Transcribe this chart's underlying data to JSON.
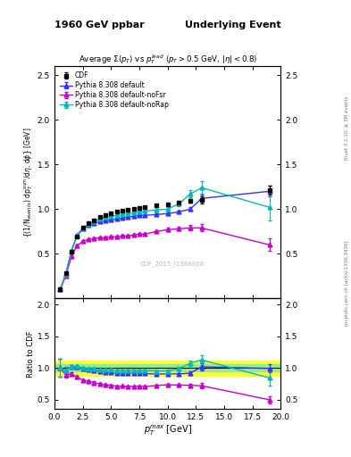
{
  "title_left": "1960 GeV ppbar",
  "title_right": "Underlying Event",
  "plot_title": "Average $\\Sigma(p_T)$ vs $p_T^{lead}$ ($p_T > 0.5$ GeV, $|\\eta| < 0.8$)",
  "watermark": "CDF_2015_I1388868",
  "rivet_label": "Rivet 3.1.10, ≥ 3M events",
  "mcplots_label": "mcplots.cern.ch [arXiv:1306.3436]",
  "ylabel_main": "{(1/N$_{events}$) dp$_T^{sum}$/d$\\eta$, d$\\phi$} [GeV]",
  "ylabel_ratio": "Ratio to CDF",
  "xlabel": "${p_T^{max}}$ [GeV]",
  "xlim": [
    0,
    20
  ],
  "ylim_main": [
    0,
    2.6
  ],
  "ylim_ratio": [
    0.35,
    2.1
  ],
  "yticks_main": [
    0.5,
    1.0,
    1.5,
    2.0,
    2.5
  ],
  "yticks_ratio": [
    0.5,
    1.0,
    1.5,
    2.0
  ],
  "cdf_x": [
    0.5,
    1.0,
    1.5,
    2.0,
    2.5,
    3.0,
    3.5,
    4.0,
    4.5,
    5.0,
    5.5,
    6.0,
    6.5,
    7.0,
    7.5,
    8.0,
    9.0,
    10.0,
    11.0,
    12.0,
    13.0,
    19.0
  ],
  "cdf_y": [
    0.1,
    0.28,
    0.52,
    0.69,
    0.79,
    0.84,
    0.87,
    0.91,
    0.93,
    0.95,
    0.97,
    0.98,
    0.99,
    1.0,
    1.01,
    1.02,
    1.04,
    1.05,
    1.07,
    1.09,
    1.1,
    1.21
  ],
  "cdf_yerr": [
    0.01,
    0.01,
    0.01,
    0.01,
    0.01,
    0.01,
    0.01,
    0.01,
    0.01,
    0.01,
    0.01,
    0.01,
    0.01,
    0.01,
    0.01,
    0.01,
    0.01,
    0.01,
    0.01,
    0.02,
    0.04,
    0.05
  ],
  "pythia_default_x": [
    0.5,
    1.0,
    1.5,
    2.0,
    2.5,
    3.0,
    3.5,
    4.0,
    4.5,
    5.0,
    5.5,
    6.0,
    6.5,
    7.0,
    7.5,
    8.0,
    9.0,
    10.0,
    11.0,
    12.0,
    13.0,
    19.0
  ],
  "pythia_default_y": [
    0.1,
    0.27,
    0.53,
    0.7,
    0.78,
    0.82,
    0.84,
    0.86,
    0.87,
    0.88,
    0.89,
    0.9,
    0.91,
    0.92,
    0.93,
    0.93,
    0.94,
    0.95,
    0.97,
    1.0,
    1.12,
    1.2
  ],
  "pythia_default_yerr": [
    0.01,
    0.01,
    0.01,
    0.01,
    0.01,
    0.01,
    0.01,
    0.01,
    0.01,
    0.01,
    0.01,
    0.01,
    0.01,
    0.01,
    0.01,
    0.01,
    0.01,
    0.01,
    0.01,
    0.02,
    0.04,
    0.06
  ],
  "pythia_nofsr_x": [
    0.5,
    1.0,
    1.5,
    2.0,
    2.5,
    3.0,
    3.5,
    4.0,
    4.5,
    5.0,
    5.5,
    6.0,
    6.5,
    7.0,
    7.5,
    8.0,
    9.0,
    10.0,
    11.0,
    12.0,
    13.0,
    19.0
  ],
  "pythia_nofsr_y": [
    0.1,
    0.25,
    0.47,
    0.59,
    0.64,
    0.66,
    0.67,
    0.68,
    0.68,
    0.69,
    0.69,
    0.7,
    0.7,
    0.71,
    0.72,
    0.72,
    0.75,
    0.77,
    0.78,
    0.79,
    0.79,
    0.6
  ],
  "pythia_nofsr_yerr": [
    0.01,
    0.01,
    0.01,
    0.01,
    0.01,
    0.01,
    0.01,
    0.01,
    0.01,
    0.01,
    0.01,
    0.01,
    0.01,
    0.01,
    0.01,
    0.01,
    0.01,
    0.02,
    0.02,
    0.03,
    0.04,
    0.07
  ],
  "pythia_norap_x": [
    0.5,
    1.0,
    1.5,
    2.0,
    2.5,
    3.0,
    3.5,
    4.0,
    4.5,
    5.0,
    5.5,
    6.0,
    6.5,
    7.0,
    7.5,
    8.0,
    9.0,
    10.0,
    11.0,
    12.0,
    13.0,
    19.0
  ],
  "pythia_norap_y": [
    0.1,
    0.27,
    0.53,
    0.71,
    0.79,
    0.83,
    0.86,
    0.89,
    0.91,
    0.92,
    0.93,
    0.94,
    0.95,
    0.96,
    0.97,
    0.98,
    0.99,
    1.0,
    1.06,
    1.17,
    1.24,
    1.02
  ],
  "pythia_norap_yerr": [
    0.01,
    0.01,
    0.01,
    0.01,
    0.01,
    0.01,
    0.01,
    0.01,
    0.01,
    0.01,
    0.01,
    0.01,
    0.01,
    0.01,
    0.01,
    0.01,
    0.01,
    0.02,
    0.03,
    0.04,
    0.07,
    0.15
  ],
  "color_cdf": "#000000",
  "color_default": "#3333ff",
  "color_nofsr": "#cc00cc",
  "color_norap": "#00bbbb",
  "green_band_half": 0.06,
  "yellow_band_half": 0.12,
  "bg_color": "#ffffff"
}
